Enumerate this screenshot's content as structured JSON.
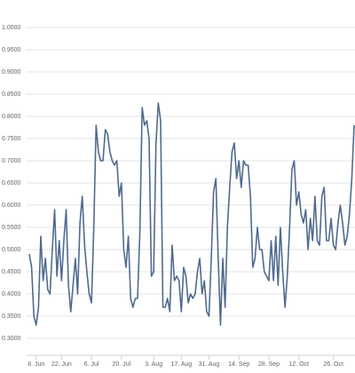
{
  "chart_data": {
    "type": "line",
    "categories": [
      null,
      null,
      null,
      "8. Jun",
      null,
      null,
      null,
      null,
      null,
      null,
      null,
      null,
      null,
      null,
      "22. Jun",
      null,
      null,
      null,
      null,
      null,
      null,
      null,
      null,
      null,
      null,
      null,
      null,
      "6. Jul",
      null,
      null,
      null,
      null,
      null,
      null,
      null,
      null,
      null,
      null,
      null,
      null,
      "20. Jul",
      null,
      null,
      null,
      null,
      null,
      null,
      null,
      null,
      null,
      null,
      null,
      null,
      null,
      "3. Aug",
      null,
      null,
      null,
      null,
      null,
      null,
      null,
      null,
      null,
      null,
      null,
      "17. Aug",
      null,
      null,
      null,
      null,
      null,
      null,
      null,
      null,
      null,
      null,
      null,
      "31. Aug",
      null,
      null,
      null,
      null,
      null,
      null,
      null,
      null,
      null,
      null,
      null,
      null,
      "14. Sep",
      null,
      null,
      null,
      null,
      null,
      null,
      null,
      null,
      null,
      null,
      null,
      null,
      "28. Sep",
      null,
      null,
      null,
      null,
      null,
      null,
      null,
      null,
      null,
      null,
      null,
      null,
      "12. Oct",
      null,
      null,
      null,
      null,
      null,
      null,
      null,
      null,
      null,
      null,
      null,
      null,
      null,
      null,
      "26. Oct",
      null,
      null,
      null,
      null,
      null,
      null,
      null,
      null,
      null
    ],
    "series": [
      {
        "color": "#4f6b8f",
        "values": [
          0.49,
          0.46,
          0.35,
          0.33,
          0.37,
          0.53,
          0.43,
          0.48,
          0.41,
          0.4,
          0.5,
          0.59,
          0.44,
          0.52,
          0.43,
          0.52,
          0.59,
          0.42,
          0.36,
          0.42,
          0.48,
          0.4,
          0.56,
          0.62,
          0.51,
          0.45,
          0.4,
          0.38,
          0.55,
          0.78,
          0.72,
          0.7,
          0.7,
          0.77,
          0.76,
          0.72,
          0.7,
          0.69,
          0.7,
          0.62,
          0.65,
          0.5,
          0.46,
          0.53,
          0.39,
          0.37,
          0.39,
          0.39,
          0.54,
          0.82,
          0.78,
          0.79,
          0.75,
          0.44,
          0.45,
          0.74,
          0.83,
          0.79,
          0.37,
          0.37,
          0.39,
          0.36,
          0.51,
          0.43,
          0.44,
          0.43,
          0.36,
          0.46,
          0.44,
          0.38,
          0.4,
          0.39,
          0.4,
          0.45,
          0.48,
          0.4,
          0.43,
          0.36,
          0.35,
          0.48,
          0.63,
          0.66,
          0.48,
          0.33,
          0.48,
          0.37,
          0.55,
          0.64,
          0.72,
          0.74,
          0.66,
          0.7,
          0.64,
          0.7,
          0.69,
          0.69,
          0.62,
          0.46,
          0.48,
          0.55,
          0.5,
          0.5,
          0.45,
          0.44,
          0.43,
          0.52,
          0.43,
          0.53,
          0.42,
          0.55,
          0.45,
          0.37,
          0.44,
          0.55,
          0.68,
          0.7,
          0.6,
          0.63,
          0.58,
          0.56,
          0.59,
          0.5,
          0.57,
          0.52,
          0.62,
          0.52,
          0.51,
          0.62,
          0.64,
          0.52,
          0.52,
          0.57,
          0.51,
          0.5,
          0.56,
          0.6,
          0.56,
          0.51,
          0.53,
          0.58,
          0.66,
          0.78
        ]
      }
    ],
    "ylim": [
      0.27,
      1.0
    ],
    "yticks": [
      {
        "value": 1.0,
        "label": "1.0000"
      },
      {
        "value": 0.95,
        "label": "0.9500"
      },
      {
        "value": 0.9,
        "label": "0.9000"
      },
      {
        "value": 0.85,
        "label": "0.8500"
      },
      {
        "value": 0.8,
        "label": "0.8000"
      },
      {
        "value": 0.75,
        "label": "0.7500"
      },
      {
        "value": 0.7,
        "label": "0.7000"
      },
      {
        "value": 0.65,
        "label": "0.6500"
      },
      {
        "value": 0.6,
        "label": "0.6000"
      },
      {
        "value": 0.55,
        "label": "0.5500"
      },
      {
        "value": 0.5,
        "label": "0.5000"
      },
      {
        "value": 0.45,
        "label": "0.4500"
      },
      {
        "value": 0.4,
        "label": "0.4000"
      },
      {
        "value": 0.35,
        "label": "0.3500"
      },
      {
        "value": 0.3,
        "label": "0.3000"
      }
    ],
    "grid": true
  }
}
